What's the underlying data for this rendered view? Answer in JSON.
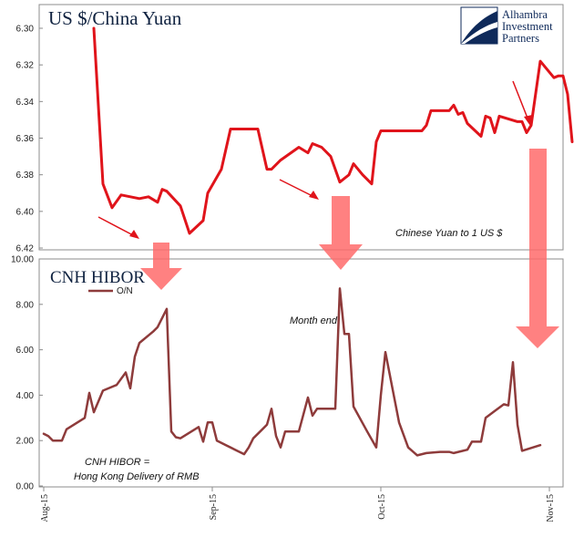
{
  "colors": {
    "yuan": "#e0141b",
    "hibor": "#8e3b3b",
    "arrow_small": "#e0141b",
    "arrow_big": "#ff6b6b",
    "logo": "#0f2a5a"
  },
  "logo": {
    "line1": "Alhambra",
    "line2": "Investment",
    "line3": "Partners"
  },
  "chart_data": [
    {
      "type": "line",
      "title": "US $/China Yuan",
      "y_axis": {
        "inverted": true,
        "ylim": [
          6.3,
          6.42
        ],
        "ticks": [
          "6.30",
          "6.32",
          "6.34",
          "6.36",
          "6.38",
          "6.40",
          "6.42"
        ]
      },
      "series": [
        {
          "legend": "Chinese Yuan to 1 US $",
          "values": [
            [
              11,
              6.3
            ],
            [
              13,
              6.385
            ],
            [
              15,
              6.398
            ],
            [
              17,
              6.391
            ],
            [
              21,
              6.393
            ],
            [
              23,
              6.392
            ],
            [
              25,
              6.395
            ],
            [
              26,
              6.388
            ],
            [
              27,
              6.389
            ],
            [
              30,
              6.397
            ],
            [
              32,
              6.412
            ],
            [
              35,
              6.405
            ],
            [
              36,
              6.39
            ],
            [
              39,
              6.377
            ],
            [
              41,
              6.355
            ],
            [
              42,
              6.355
            ],
            [
              47,
              6.355
            ],
            [
              49,
              6.377
            ],
            [
              50,
              6.377
            ],
            [
              52,
              6.372
            ],
            [
              56,
              6.365
            ],
            [
              58,
              6.368
            ],
            [
              59,
              6.363
            ],
            [
              61,
              6.365
            ],
            [
              63,
              6.37
            ],
            [
              65,
              6.384
            ],
            [
              67,
              6.38
            ],
            [
              68,
              6.374
            ],
            [
              70,
              6.38
            ],
            [
              72,
              6.385
            ],
            [
              73,
              6.362
            ],
            [
              74,
              6.356
            ],
            [
              79,
              6.356
            ],
            [
              83,
              6.356
            ],
            [
              84,
              6.353
            ],
            [
              85,
              6.345
            ],
            [
              89,
              6.345
            ],
            [
              90,
              6.342
            ],
            [
              91,
              6.347
            ],
            [
              92,
              6.346
            ],
            [
              93,
              6.352
            ],
            [
              96,
              6.359
            ],
            [
              97,
              6.348
            ],
            [
              98,
              6.349
            ],
            [
              99,
              6.357
            ],
            [
              100,
              6.348
            ],
            [
              104,
              6.351
            ],
            [
              105,
              6.351
            ],
            [
              106,
              6.357
            ],
            [
              107,
              6.353
            ],
            [
              109,
              6.318
            ],
            [
              112,
              6.327
            ],
            [
              113,
              6.326
            ],
            [
              114,
              6.326
            ],
            [
              115,
              6.336
            ],
            [
              116,
              6.362
            ]
          ]
        }
      ],
      "annotations": [
        "Chinese Yuan to 1 US $"
      ]
    },
    {
      "type": "line",
      "title": "CNH HIBOR",
      "x_ticks": [
        "Aug-15",
        "Sep-15",
        "Oct-15",
        "Nov-15"
      ],
      "x_tick_positions": [
        0,
        37,
        74,
        111
      ],
      "y_axis": {
        "ylim": [
          0,
          10
        ],
        "ticks": [
          "0.00",
          "2.00",
          "4.00",
          "6.00",
          "8.00",
          "10.00"
        ]
      },
      "series": [
        {
          "name": "O/N",
          "values": [
            [
              0,
              2.3
            ],
            [
              1,
              2.2
            ],
            [
              2,
              2.0
            ],
            [
              4,
              2.0
            ],
            [
              5,
              2.5
            ],
            [
              9,
              3.0
            ],
            [
              10,
              4.1
            ],
            [
              11,
              3.25
            ],
            [
              13,
              4.2
            ],
            [
              16,
              4.45
            ],
            [
              18,
              5.0
            ],
            [
              19,
              4.3
            ],
            [
              20,
              5.7
            ],
            [
              21,
              6.3
            ],
            [
              24,
              6.8
            ],
            [
              25,
              7.0
            ],
            [
              27,
              7.8
            ],
            [
              28,
              2.4
            ],
            [
              29,
              2.15
            ],
            [
              30,
              2.1
            ],
            [
              34,
              2.6
            ],
            [
              35,
              1.95
            ],
            [
              36,
              2.8
            ],
            [
              37,
              2.8
            ],
            [
              38,
              2.0
            ],
            [
              40,
              1.8
            ],
            [
              42,
              1.6
            ],
            [
              44,
              1.4
            ],
            [
              45,
              1.7
            ],
            [
              46,
              2.1
            ],
            [
              48,
              2.5
            ],
            [
              49,
              2.7
            ],
            [
              50,
              3.4
            ],
            [
              51,
              2.2
            ],
            [
              52,
              1.7
            ],
            [
              53,
              2.4
            ],
            [
              56,
              2.4
            ],
            [
              58,
              3.9
            ],
            [
              59,
              3.1
            ],
            [
              60,
              3.4
            ],
            [
              64,
              3.4
            ],
            [
              65,
              8.7
            ],
            [
              66,
              6.7
            ],
            [
              67,
              6.7
            ],
            [
              68,
              3.5
            ],
            [
              71,
              2.4
            ],
            [
              73,
              1.7
            ],
            [
              74,
              4.0
            ],
            [
              75,
              5.9
            ],
            [
              78,
              2.8
            ],
            [
              80,
              1.7
            ],
            [
              82,
              1.35
            ],
            [
              84,
              1.45
            ],
            [
              87,
              1.5
            ],
            [
              89,
              1.5
            ],
            [
              90,
              1.45
            ],
            [
              93,
              1.6
            ],
            [
              94,
              1.95
            ],
            [
              96,
              1.95
            ],
            [
              97,
              3.0
            ],
            [
              99,
              3.3
            ],
            [
              101,
              3.6
            ],
            [
              102,
              3.55
            ],
            [
              103,
              5.45
            ],
            [
              104,
              2.7
            ],
            [
              105,
              1.55
            ],
            [
              109,
              1.8
            ]
          ]
        }
      ],
      "annotations": [
        "Month end",
        "CNH HIBOR =",
        "Hong Kong Delivery of RMB"
      ]
    }
  ]
}
